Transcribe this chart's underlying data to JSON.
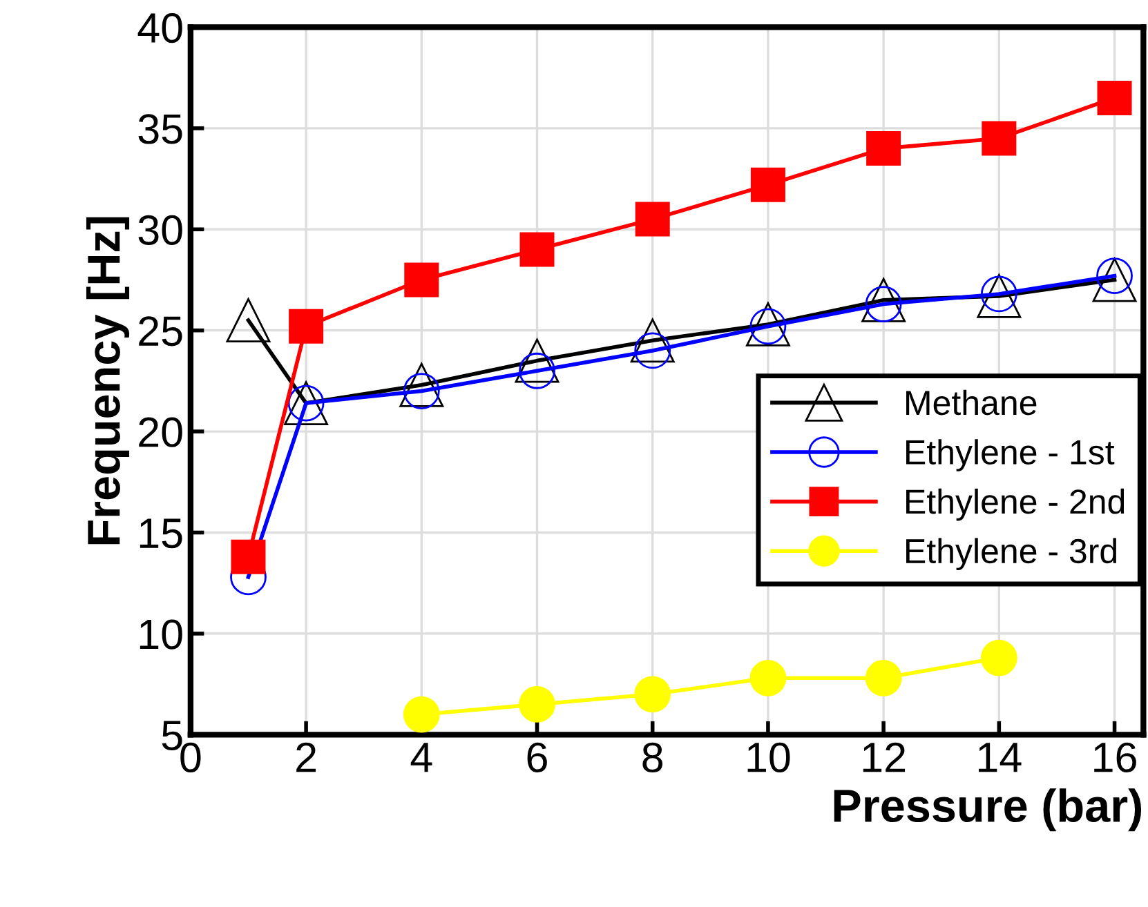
{
  "chart_data": {
    "type": "line",
    "xlabel": "Pressure (bar)",
    "ylabel": "Frequency [Hz]",
    "xlim": [
      0,
      16.5
    ],
    "ylim": [
      5,
      40
    ],
    "xticks": [
      0,
      2,
      4,
      6,
      8,
      10,
      12,
      14,
      16
    ],
    "yticks": [
      5,
      10,
      15,
      20,
      25,
      30,
      35,
      40
    ],
    "grid": true,
    "legend": "right",
    "series": [
      {
        "name": "Methane",
        "color": "#000000",
        "marker": "triangle",
        "x": [
          1,
          2,
          4,
          6,
          8,
          10,
          12,
          14,
          16
        ],
        "values": [
          25.5,
          21.4,
          22.3,
          23.5,
          24.5,
          25.3,
          26.5,
          26.7,
          27.5
        ]
      },
      {
        "name": "Ethylene - 1st",
        "color": "#0000ff",
        "marker": "circle",
        "x": [
          1,
          2,
          4,
          6,
          8,
          10,
          12,
          14,
          16
        ],
        "values": [
          12.8,
          21.4,
          22.0,
          23.0,
          24.0,
          25.2,
          26.3,
          26.8,
          27.7
        ]
      },
      {
        "name": "Ethylene - 2nd",
        "color": "#ff0000",
        "marker": "square",
        "x": [
          1,
          2,
          4,
          6,
          8,
          10,
          12,
          14,
          16
        ],
        "values": [
          13.8,
          25.2,
          27.5,
          29.0,
          30.5,
          32.2,
          34.0,
          34.5,
          36.5
        ]
      },
      {
        "name": "Ethylene - 3rd",
        "color": "#ffff00",
        "marker": "circle",
        "x": [
          4,
          6,
          8,
          10,
          12,
          14
        ],
        "values": [
          6.0,
          6.5,
          7.0,
          7.8,
          7.8,
          8.8
        ]
      }
    ]
  }
}
